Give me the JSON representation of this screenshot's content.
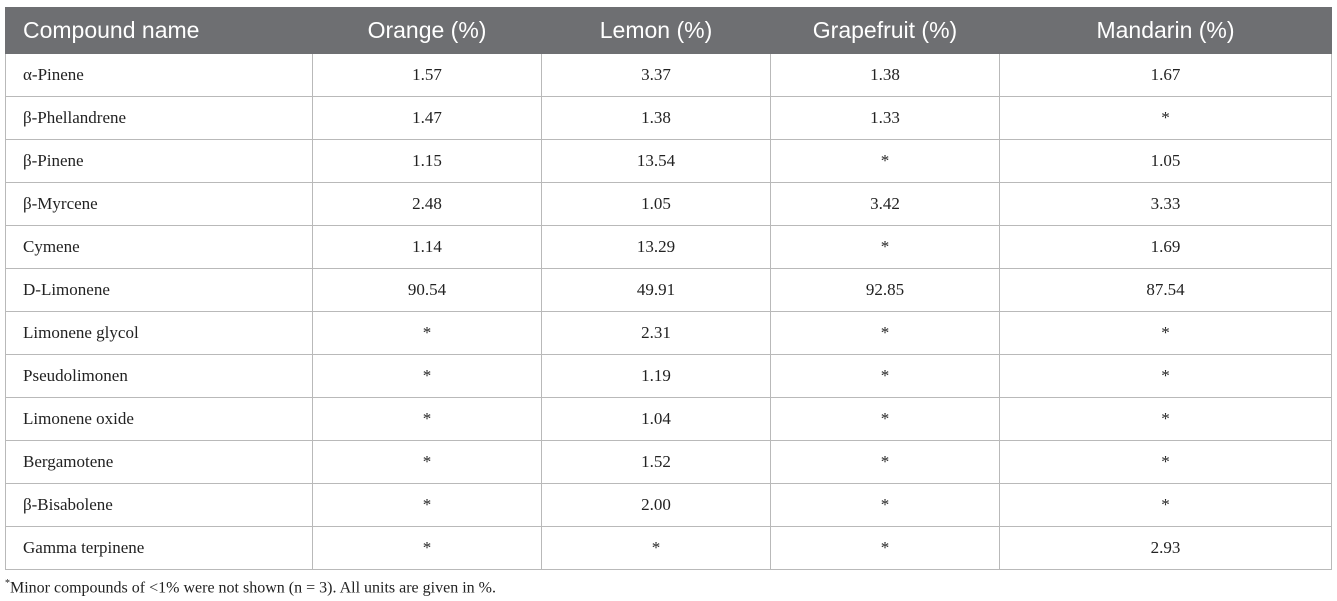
{
  "table": {
    "header": [
      "Compound name",
      "Orange (%)",
      "Lemon (%)",
      "Grapefruit (%)",
      "Mandarin (%)"
    ],
    "rows": [
      [
        "α-Pinene",
        "1.57",
        "3.37",
        "1.38",
        "1.67"
      ],
      [
        "β-Phellandrene",
        "1.47",
        "1.38",
        "1.33",
        "*"
      ],
      [
        "β-Pinene",
        "1.15",
        "13.54",
        "*",
        "1.05"
      ],
      [
        "β-Myrcene",
        "2.48",
        "1.05",
        "3.42",
        "3.33"
      ],
      [
        "Cymene",
        "1.14",
        "13.29",
        "*",
        "1.69"
      ],
      [
        "D-Limonene",
        "90.54",
        "49.91",
        "92.85",
        "87.54"
      ],
      [
        "Limonene glycol",
        "*",
        "2.31",
        "*",
        "*"
      ],
      [
        "Pseudolimonen",
        "*",
        "1.19",
        "*",
        "*"
      ],
      [
        "Limonene oxide",
        "*",
        "1.04",
        "*",
        "*"
      ],
      [
        "Bergamotene",
        "*",
        "1.52",
        "*",
        "*"
      ],
      [
        "β-Bisabolene",
        "*",
        "2.00",
        "*",
        "*"
      ],
      [
        "Gamma terpinene",
        "*",
        "*",
        "*",
        "2.93"
      ]
    ]
  },
  "footnote": {
    "marker": "*",
    "text": "Minor compounds of <1% were not shown (n = 3). All units are given in %."
  }
}
